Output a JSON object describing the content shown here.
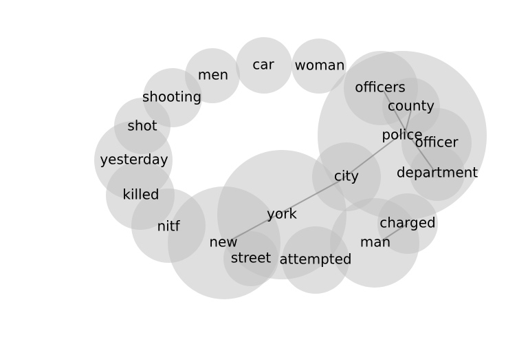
{
  "diagram": {
    "type": "bubble-word-graph",
    "terms": [
      {
        "id": "car",
        "label": "car"
      },
      {
        "id": "woman",
        "label": "woman"
      },
      {
        "id": "men",
        "label": "men"
      },
      {
        "id": "shooting",
        "label": "shooting"
      },
      {
        "id": "shot",
        "label": "shot"
      },
      {
        "id": "yesterday",
        "label": "yesterday"
      },
      {
        "id": "killed",
        "label": "killed"
      },
      {
        "id": "nitf",
        "label": "nitf"
      },
      {
        "id": "new",
        "label": "new"
      },
      {
        "id": "street",
        "label": "street"
      },
      {
        "id": "york",
        "label": "york"
      },
      {
        "id": "attempted",
        "label": "attempted"
      },
      {
        "id": "man",
        "label": "man"
      },
      {
        "id": "charged",
        "label": "charged"
      },
      {
        "id": "city",
        "label": "city"
      },
      {
        "id": "police",
        "label": "police"
      },
      {
        "id": "officers",
        "label": "officers"
      },
      {
        "id": "county",
        "label": "county"
      },
      {
        "id": "officer",
        "label": "officer"
      },
      {
        "id": "department",
        "label": "department"
      }
    ],
    "links": [
      {
        "source": "new",
        "target": "city"
      },
      {
        "source": "city",
        "target": "police"
      },
      {
        "source": "police",
        "target": "county"
      },
      {
        "source": "police",
        "target": "officers"
      },
      {
        "source": "police",
        "target": "department"
      },
      {
        "source": "man",
        "target": "charged"
      }
    ]
  }
}
